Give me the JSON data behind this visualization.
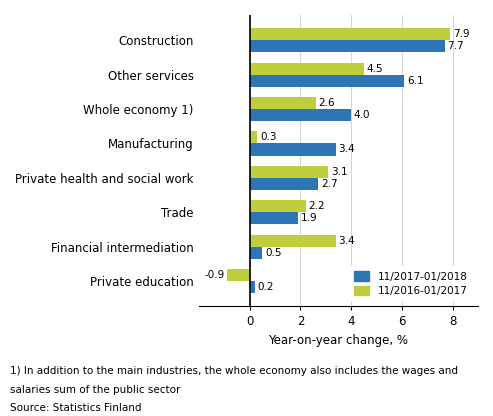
{
  "categories": [
    "Construction",
    "Other services",
    "Whole economy 1)",
    "Manufacturing",
    "Private health and social work",
    "Trade",
    "Financial intermediation",
    "Private education"
  ],
  "series1_label": "11/2017-01/2018",
  "series2_label": "11/2016-01/2017",
  "series1_values": [
    7.7,
    6.1,
    4.0,
    3.4,
    2.7,
    1.9,
    0.5,
    0.2
  ],
  "series2_values": [
    7.9,
    4.5,
    2.6,
    0.3,
    3.1,
    2.2,
    3.4,
    -0.9
  ],
  "series1_color": "#2E75B6",
  "series2_color": "#BFCE3C",
  "xlabel": "Year-on-year change, %",
  "xlim": [
    -2,
    9
  ],
  "xticks": [
    0,
    2,
    4,
    6,
    8
  ],
  "footnote1": "1) In addition to the main industries, the whole economy also includes the wages and",
  "footnote2": "salaries sum of the public sector",
  "source": "Source: Statistics Finland",
  "bar_height": 0.35,
  "label_fontsize": 8.5,
  "tick_fontsize": 8.5,
  "value_fontsize": 7.5,
  "legend_fontsize": 7.5,
  "footnote_fontsize": 7.5
}
